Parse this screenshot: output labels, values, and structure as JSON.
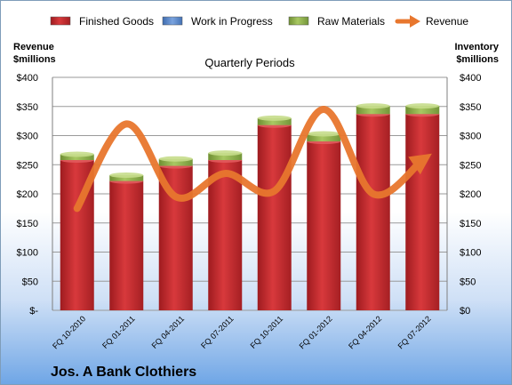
{
  "chart_data": {
    "type": "bar",
    "title": "Quarterly Periods",
    "company": "Jos. A Bank Clothiers",
    "left_axis_title": [
      "Revenue",
      "$millions"
    ],
    "right_axis_title": [
      "Inventory",
      "$millions"
    ],
    "categories": [
      "FQ 10-2010",
      "FQ 01-2011",
      "FQ 04-2011",
      "FQ 07-2011",
      "FQ 10-2011",
      "FQ 01-2012",
      "FQ 04-2012",
      "FQ 07-2012"
    ],
    "y_ticks_left": [
      "$400",
      "$350",
      "$300",
      "$250",
      "$200",
      "$150",
      "$100",
      "$50",
      "$-"
    ],
    "y_ticks_right": [
      "$400",
      "$350",
      "$300",
      "$250",
      "$200",
      "$150",
      "$100",
      "$50",
      "$0"
    ],
    "ylim": [
      0,
      400
    ],
    "legend_position": "top",
    "series": [
      {
        "name": "Finished Goods",
        "kind": "bar",
        "color": "#c0282d",
        "values": [
          258,
          222,
          248,
          258,
          318,
          290,
          337,
          337
        ]
      },
      {
        "name": "Work in Progress",
        "kind": "bar",
        "color": "#5a86c8",
        "values": [
          0,
          0,
          0,
          0,
          0,
          0,
          0,
          0
        ]
      },
      {
        "name": "Raw Materials",
        "kind": "bar",
        "color": "#8fb04a",
        "values": [
          10,
          10,
          12,
          12,
          12,
          13,
          14,
          14
        ]
      },
      {
        "name": "Revenue",
        "kind": "line",
        "color": "#e8772e",
        "values": [
          175,
          320,
          195,
          235,
          205,
          345,
          200,
          258
        ]
      }
    ]
  }
}
